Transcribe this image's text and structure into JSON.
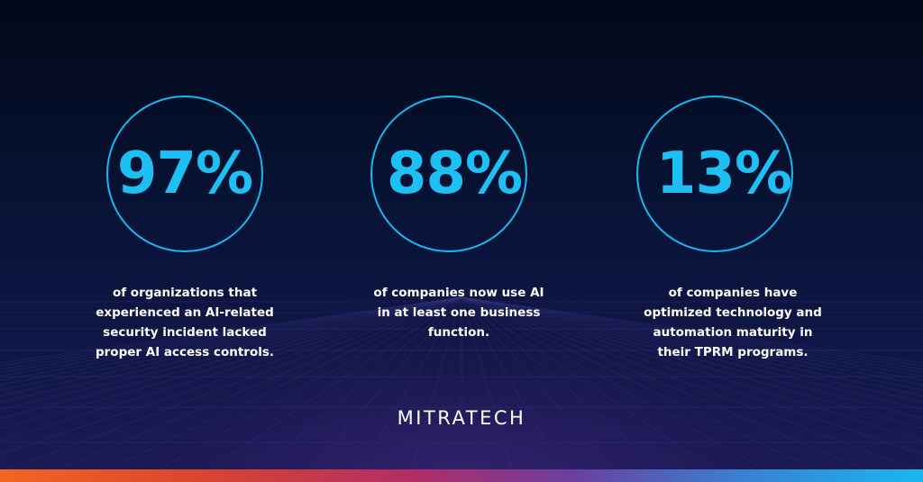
{
  "stats": [
    {
      "value": "97%",
      "description_lines": [
        "of organizations that",
        "experienced an AI-related",
        "security incident lacked",
        "proper AI access controls."
      ]
    },
    {
      "value": "88%",
      "description_lines": [
        "of companies now use AI",
        "in at least one business",
        "function."
      ]
    },
    {
      "value": "13%",
      "description_lines": [
        "of companies have",
        "optimized technology and",
        "automation maturity in",
        "their TPRM programs."
      ]
    }
  ],
  "brand": {
    "logo_text": "MITRATECH"
  },
  "colors": {
    "accent": "#1ec0f4",
    "ring": "#19b7f0",
    "text": "#ffffff",
    "background": "#071334",
    "bar_start": "#f26522",
    "bar_end": "#19b7f0"
  }
}
